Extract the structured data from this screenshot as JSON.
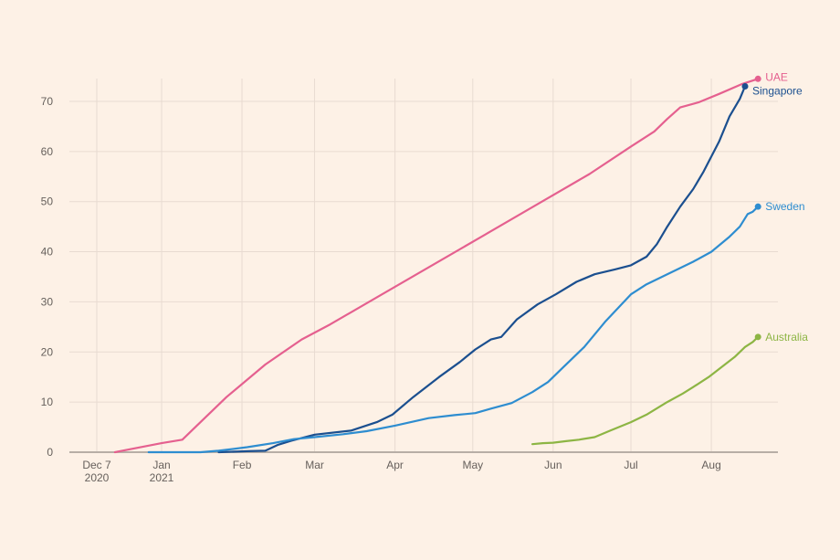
{
  "chart_data": {
    "type": "line",
    "title": "",
    "xlabel": "",
    "ylabel": "",
    "x_unit": "days since Dec 7 2020",
    "xlim": [
      -5,
      262
    ],
    "ylim": [
      0,
      75
    ],
    "grid": true,
    "y_ticks": [
      0,
      10,
      20,
      30,
      40,
      50,
      60,
      70
    ],
    "y_tick_labels": [
      "0",
      "10",
      "20",
      "30",
      "40",
      "50",
      "60",
      "70"
    ],
    "x_ticks": [
      {
        "day": 0,
        "label": "Dec 7",
        "sublabel": "2020"
      },
      {
        "day": 25,
        "label": "Jan",
        "sublabel": "2021"
      },
      {
        "day": 56,
        "label": "Feb",
        "sublabel": ""
      },
      {
        "day": 84,
        "label": "Mar",
        "sublabel": ""
      },
      {
        "day": 115,
        "label": "Apr",
        "sublabel": ""
      },
      {
        "day": 145,
        "label": "May",
        "sublabel": ""
      },
      {
        "day": 176,
        "label": "Jun",
        "sublabel": ""
      },
      {
        "day": 206,
        "label": "Jul",
        "sublabel": ""
      },
      {
        "day": 237,
        "label": "Aug",
        "sublabel": ""
      }
    ],
    "series": [
      {
        "name": "UAE",
        "color": "#e5608f",
        "x": [
          7,
          15,
          25,
          33,
          38,
          50,
          65,
          79,
          90,
          110,
          130,
          150,
          170,
          190,
          206,
          215,
          220,
          225,
          232,
          240,
          249,
          255
        ],
        "y": [
          0,
          0.8,
          1.8,
          2.5,
          5,
          11,
          17.5,
          22.5,
          25.5,
          31.5,
          37.5,
          43.5,
          49.5,
          55.5,
          61,
          64,
          66.5,
          68.8,
          69.8,
          71.5,
          73.5,
          74.5
        ]
      },
      {
        "name": "Singapore",
        "color": "#1b4f8f",
        "x": [
          47,
          58,
          65,
          70,
          75,
          84,
          98,
          108,
          114,
          122,
          132,
          140,
          146,
          152,
          156,
          162,
          170,
          177,
          185,
          192,
          200,
          206,
          212,
          216,
          220,
          225,
          230,
          234,
          240,
          244,
          248,
          250
        ],
        "y": [
          0,
          0.2,
          0.3,
          1.5,
          2.3,
          3.5,
          4.3,
          6,
          7.5,
          11,
          15,
          18,
          20.5,
          22.5,
          23,
          26.5,
          29.5,
          31.5,
          34,
          35.5,
          36.5,
          37.3,
          39,
          41.5,
          45,
          49,
          52.5,
          56,
          62,
          67,
          70.5,
          73
        ]
      },
      {
        "name": "Sweden",
        "color": "#2e8dd0",
        "x": [
          20,
          40,
          47,
          58,
          68,
          76,
          84,
          95,
          104,
          115,
          128,
          138,
          146,
          152,
          160,
          168,
          174,
          180,
          188,
          196,
          206,
          212,
          220,
          230,
          237,
          244,
          248,
          251,
          253,
          255
        ],
        "y": [
          0,
          0,
          0.3,
          1,
          1.8,
          2.6,
          3,
          3.6,
          4.2,
          5.3,
          6.8,
          7.4,
          7.8,
          8.7,
          9.8,
          12,
          14,
          17,
          21,
          26,
          31.5,
          33.5,
          35.5,
          38,
          40,
          43,
          45,
          47.5,
          48,
          49
        ]
      },
      {
        "name": "Australia",
        "color": "#8db544",
        "x": [
          168,
          172,
          176,
          181,
          186,
          192,
          198,
          206,
          212,
          220,
          226,
          230,
          236,
          241,
          246,
          250,
          253,
          255
        ],
        "y": [
          1.6,
          1.8,
          1.9,
          2.2,
          2.5,
          3,
          4.3,
          6,
          7.5,
          10,
          11.7,
          13,
          15,
          17,
          19,
          21,
          22,
          23
        ]
      }
    ],
    "legend": "end-of-line labels"
  },
  "colors": {
    "background": "#fdf1e6",
    "grid": "#e8dbd1",
    "axis": "#b7aea6",
    "tick_text": "#66605c"
  }
}
